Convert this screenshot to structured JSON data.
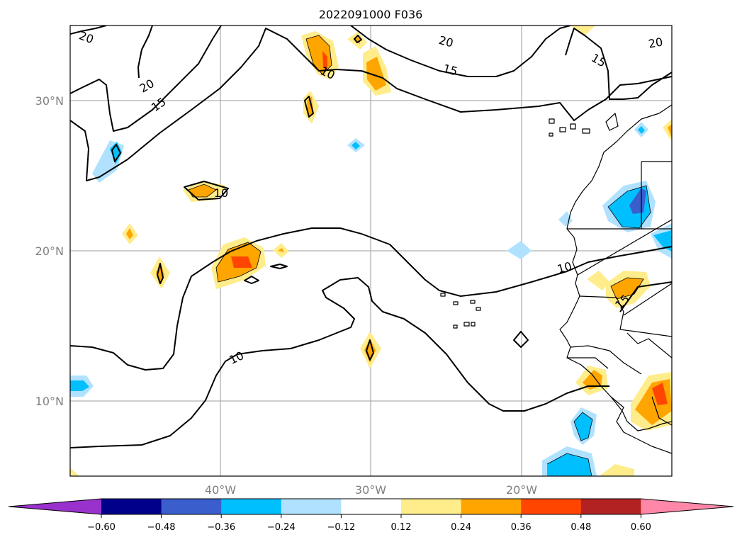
{
  "title": "2022091000 F036",
  "map": {
    "lat_labels": [
      "30°N",
      "20°N",
      "10°N"
    ],
    "lon_labels": [
      "40°W",
      "30°W",
      "20°W"
    ],
    "contour_labels": [
      "20",
      "20",
      "15",
      "10",
      "20",
      "15",
      "20",
      "15",
      "10",
      "10",
      "10",
      "15"
    ]
  },
  "colorbar": {
    "ticks": [
      "−0.60",
      "−0.48",
      "−0.36",
      "−0.24",
      "−0.12",
      "0.12",
      "0.24",
      "0.36",
      "0.48",
      "0.60"
    ],
    "colors": [
      "#9932cc",
      "#00008b",
      "#3a5fcd",
      "#00bfff",
      "#b0e2ff",
      "#ffffff",
      "#ffec8b",
      "#ffa500",
      "#ff4500",
      "#b22222",
      "#ff88a8"
    ]
  },
  "chart_data": {
    "type": "heatmap",
    "title": "2022091000 F036",
    "x_ticks": [
      "40°W",
      "30°W",
      "20°W"
    ],
    "y_ticks": [
      "30°N",
      "20°N",
      "10°N"
    ],
    "contour_levels": [
      10,
      15,
      20
    ],
    "color_levels": [
      -0.6,
      -0.48,
      -0.36,
      -0.24,
      -0.12,
      0.12,
      0.24,
      0.36,
      0.48,
      0.6
    ],
    "colorbar_extend": "both"
  }
}
